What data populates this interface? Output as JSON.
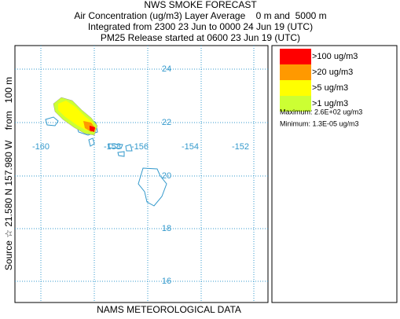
{
  "header": {
    "title": "NWS SMOKE FORECAST",
    "lines": [
      "Air Concentration (ug/m3) Layer Average    0 m and  5000 m",
      "Integrated from 2300 23 Jun to 0000 24 Jun 19 (UTC)",
      "PM25 Release started at 0600 23 Jun 19 (UTC)"
    ]
  },
  "source_label": "Source ☆ 21.580 N 157.980 W    from   100 m",
  "map": {
    "longitude_labels": [
      "-160",
      "-158",
      "-156",
      "-154",
      "-152"
    ],
    "latitude_labels": [
      "24",
      "22",
      "20",
      "18",
      "16"
    ]
  },
  "legend": {
    "items": [
      {
        "label": ">100 ug/m3",
        "color": "#ff0000"
      },
      {
        "label": ">20 ug/m3",
        "color": "#ff9900"
      },
      {
        "label": ">5 ug/m3",
        "color": "#ffff00"
      },
      {
        "label": ">1 ug/m3",
        "color": "#ccff33"
      }
    ],
    "maximum": "Maximum: 2.6E+02 ug/m3",
    "minimum": "Minimum: 1.3E-05 ug/m3"
  },
  "footer": "NAMS METEOROLOGICAL DATA"
}
